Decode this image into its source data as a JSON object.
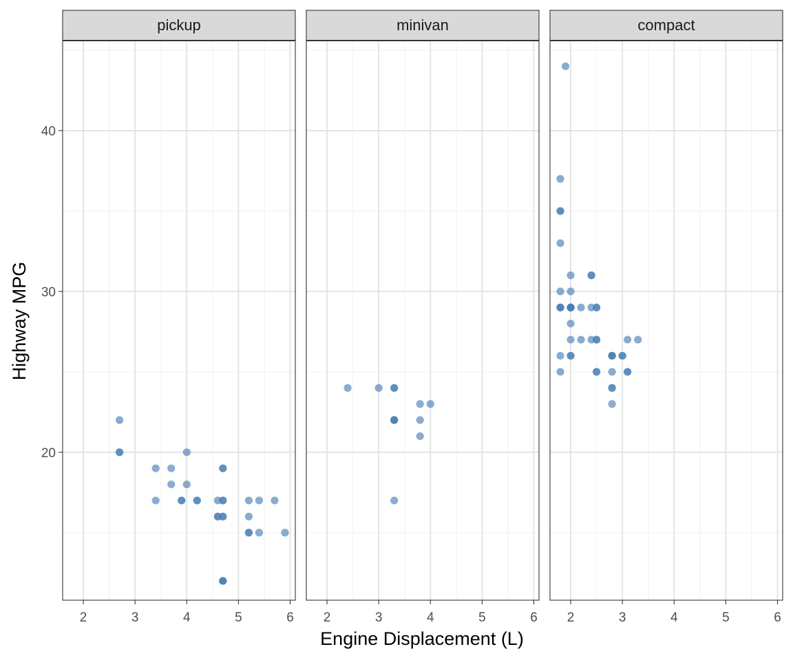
{
  "chart_data": {
    "type": "scatter",
    "xlabel": "Engine Displacement (L)",
    "ylabel": "Highway MPG",
    "xlim": [
      1.6,
      6.1
    ],
    "ylim": [
      10.8,
      45.6
    ],
    "x_ticks": [
      2,
      3,
      4,
      5,
      6
    ],
    "y_ticks": [
      20,
      30,
      40
    ],
    "x_minor": [
      2.5,
      3.5,
      4.5,
      5.5
    ],
    "y_minor": [
      15,
      25,
      35,
      45
    ],
    "grid": true,
    "point_color": "#4a7fb5",
    "point_opacity": 0.65,
    "panels": [
      {
        "label": "pickup",
        "points": [
          [
            2.7,
            20
          ],
          [
            2.7,
            20
          ],
          [
            2.7,
            22
          ],
          [
            3.4,
            17
          ],
          [
            3.4,
            19
          ],
          [
            3.7,
            18
          ],
          [
            3.7,
            19
          ],
          [
            3.9,
            17
          ],
          [
            3.9,
            17
          ],
          [
            4.0,
            20
          ],
          [
            4.0,
            18
          ],
          [
            4.2,
            17
          ],
          [
            4.2,
            17
          ],
          [
            4.6,
            16
          ],
          [
            4.6,
            16
          ],
          [
            4.6,
            17
          ],
          [
            4.7,
            19
          ],
          [
            4.7,
            19
          ],
          [
            4.7,
            17
          ],
          [
            4.7,
            17
          ],
          [
            4.7,
            16
          ],
          [
            4.7,
            16
          ],
          [
            4.7,
            12
          ],
          [
            4.7,
            12
          ],
          [
            4.7,
            12
          ],
          [
            5.2,
            17
          ],
          [
            5.2,
            16
          ],
          [
            5.2,
            15
          ],
          [
            5.2,
            15
          ],
          [
            5.4,
            17
          ],
          [
            5.4,
            15
          ],
          [
            5.7,
            17
          ],
          [
            5.9,
            15
          ]
        ]
      },
      {
        "label": "minivan",
        "points": [
          [
            2.4,
            24
          ],
          [
            3.0,
            24
          ],
          [
            3.3,
            24
          ],
          [
            3.3,
            24
          ],
          [
            3.3,
            22
          ],
          [
            3.3,
            22
          ],
          [
            3.3,
            22
          ],
          [
            3.3,
            17
          ],
          [
            3.8,
            23
          ],
          [
            3.8,
            22
          ],
          [
            3.8,
            21
          ],
          [
            4.0,
            23
          ]
        ]
      },
      {
        "label": "compact",
        "points": [
          [
            1.8,
            29
          ],
          [
            1.8,
            29
          ],
          [
            2.0,
            31
          ],
          [
            2.0,
            30
          ],
          [
            2.8,
            26
          ],
          [
            2.8,
            26
          ],
          [
            3.1,
            27
          ],
          [
            1.8,
            26
          ],
          [
            1.8,
            25
          ],
          [
            2.0,
            28
          ],
          [
            2.0,
            29
          ],
          [
            2.8,
            26
          ],
          [
            2.8,
            25
          ],
          [
            3.1,
            25
          ],
          [
            3.1,
            25
          ],
          [
            1.8,
            35
          ],
          [
            1.8,
            37
          ],
          [
            1.8,
            35
          ],
          [
            2.0,
            29
          ],
          [
            2.0,
            29
          ],
          [
            1.9,
            44
          ],
          [
            2.0,
            29
          ],
          [
            2.0,
            26
          ],
          [
            2.0,
            29
          ],
          [
            2.0,
            26
          ],
          [
            2.5,
            25
          ],
          [
            2.5,
            25
          ],
          [
            2.5,
            29
          ],
          [
            2.5,
            29
          ],
          [
            2.5,
            27
          ],
          [
            2.5,
            27
          ],
          [
            2.2,
            29
          ],
          [
            2.2,
            27
          ],
          [
            2.4,
            31
          ],
          [
            2.4,
            31
          ],
          [
            3.0,
            26
          ],
          [
            3.0,
            26
          ],
          [
            3.3,
            27
          ],
          [
            1.8,
            30
          ],
          [
            1.8,
            33
          ],
          [
            1.8,
            29
          ],
          [
            2.4,
            29
          ],
          [
            2.4,
            27
          ],
          [
            2.8,
            24
          ],
          [
            2.8,
            24
          ],
          [
            2.8,
            23
          ],
          [
            2.0,
            27
          ]
        ]
      }
    ]
  }
}
